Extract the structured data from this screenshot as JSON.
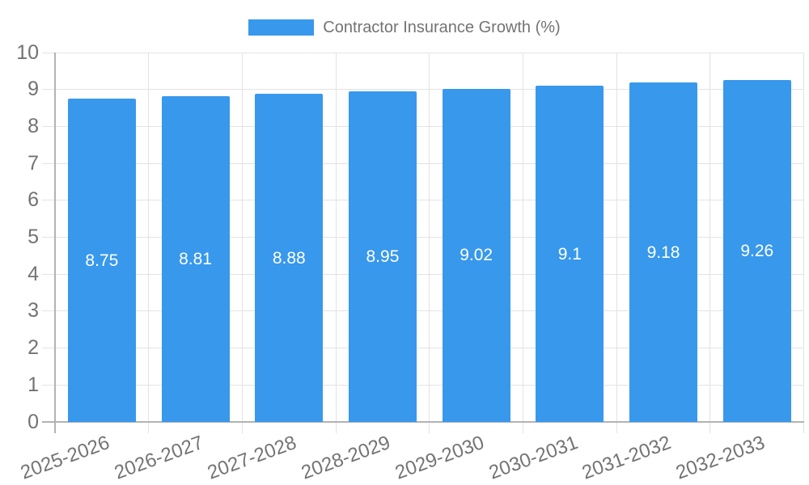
{
  "chart_data": {
    "type": "bar",
    "title": "",
    "legend": {
      "label": "Contractor Insurance Growth (%)",
      "position": "top"
    },
    "categories": [
      "2025-2026",
      "2026-2027",
      "2027-2028",
      "2028-2029",
      "2029-2030",
      "2030-2031",
      "2031-2032",
      "2032-2033"
    ],
    "values": [
      8.75,
      8.81,
      8.88,
      8.95,
      9.02,
      9.1,
      9.18,
      9.26
    ],
    "value_labels": [
      "8.75",
      "8.81",
      "8.88",
      "8.95",
      "9.02",
      "9.1",
      "9.18",
      "9.26"
    ],
    "xlabel": "",
    "ylabel": "",
    "ylim": [
      0,
      10
    ],
    "yticks": [
      0,
      1,
      2,
      3,
      4,
      5,
      6,
      7,
      8,
      9,
      10
    ],
    "grid": true,
    "colors": {
      "bar": "#3898ec",
      "grid": "#e3e3e3",
      "axis": "#b3b3b3",
      "tick_text": "#737373",
      "legend_text": "#737373",
      "value_text": "#ffffff",
      "background": "#ffffff"
    }
  }
}
